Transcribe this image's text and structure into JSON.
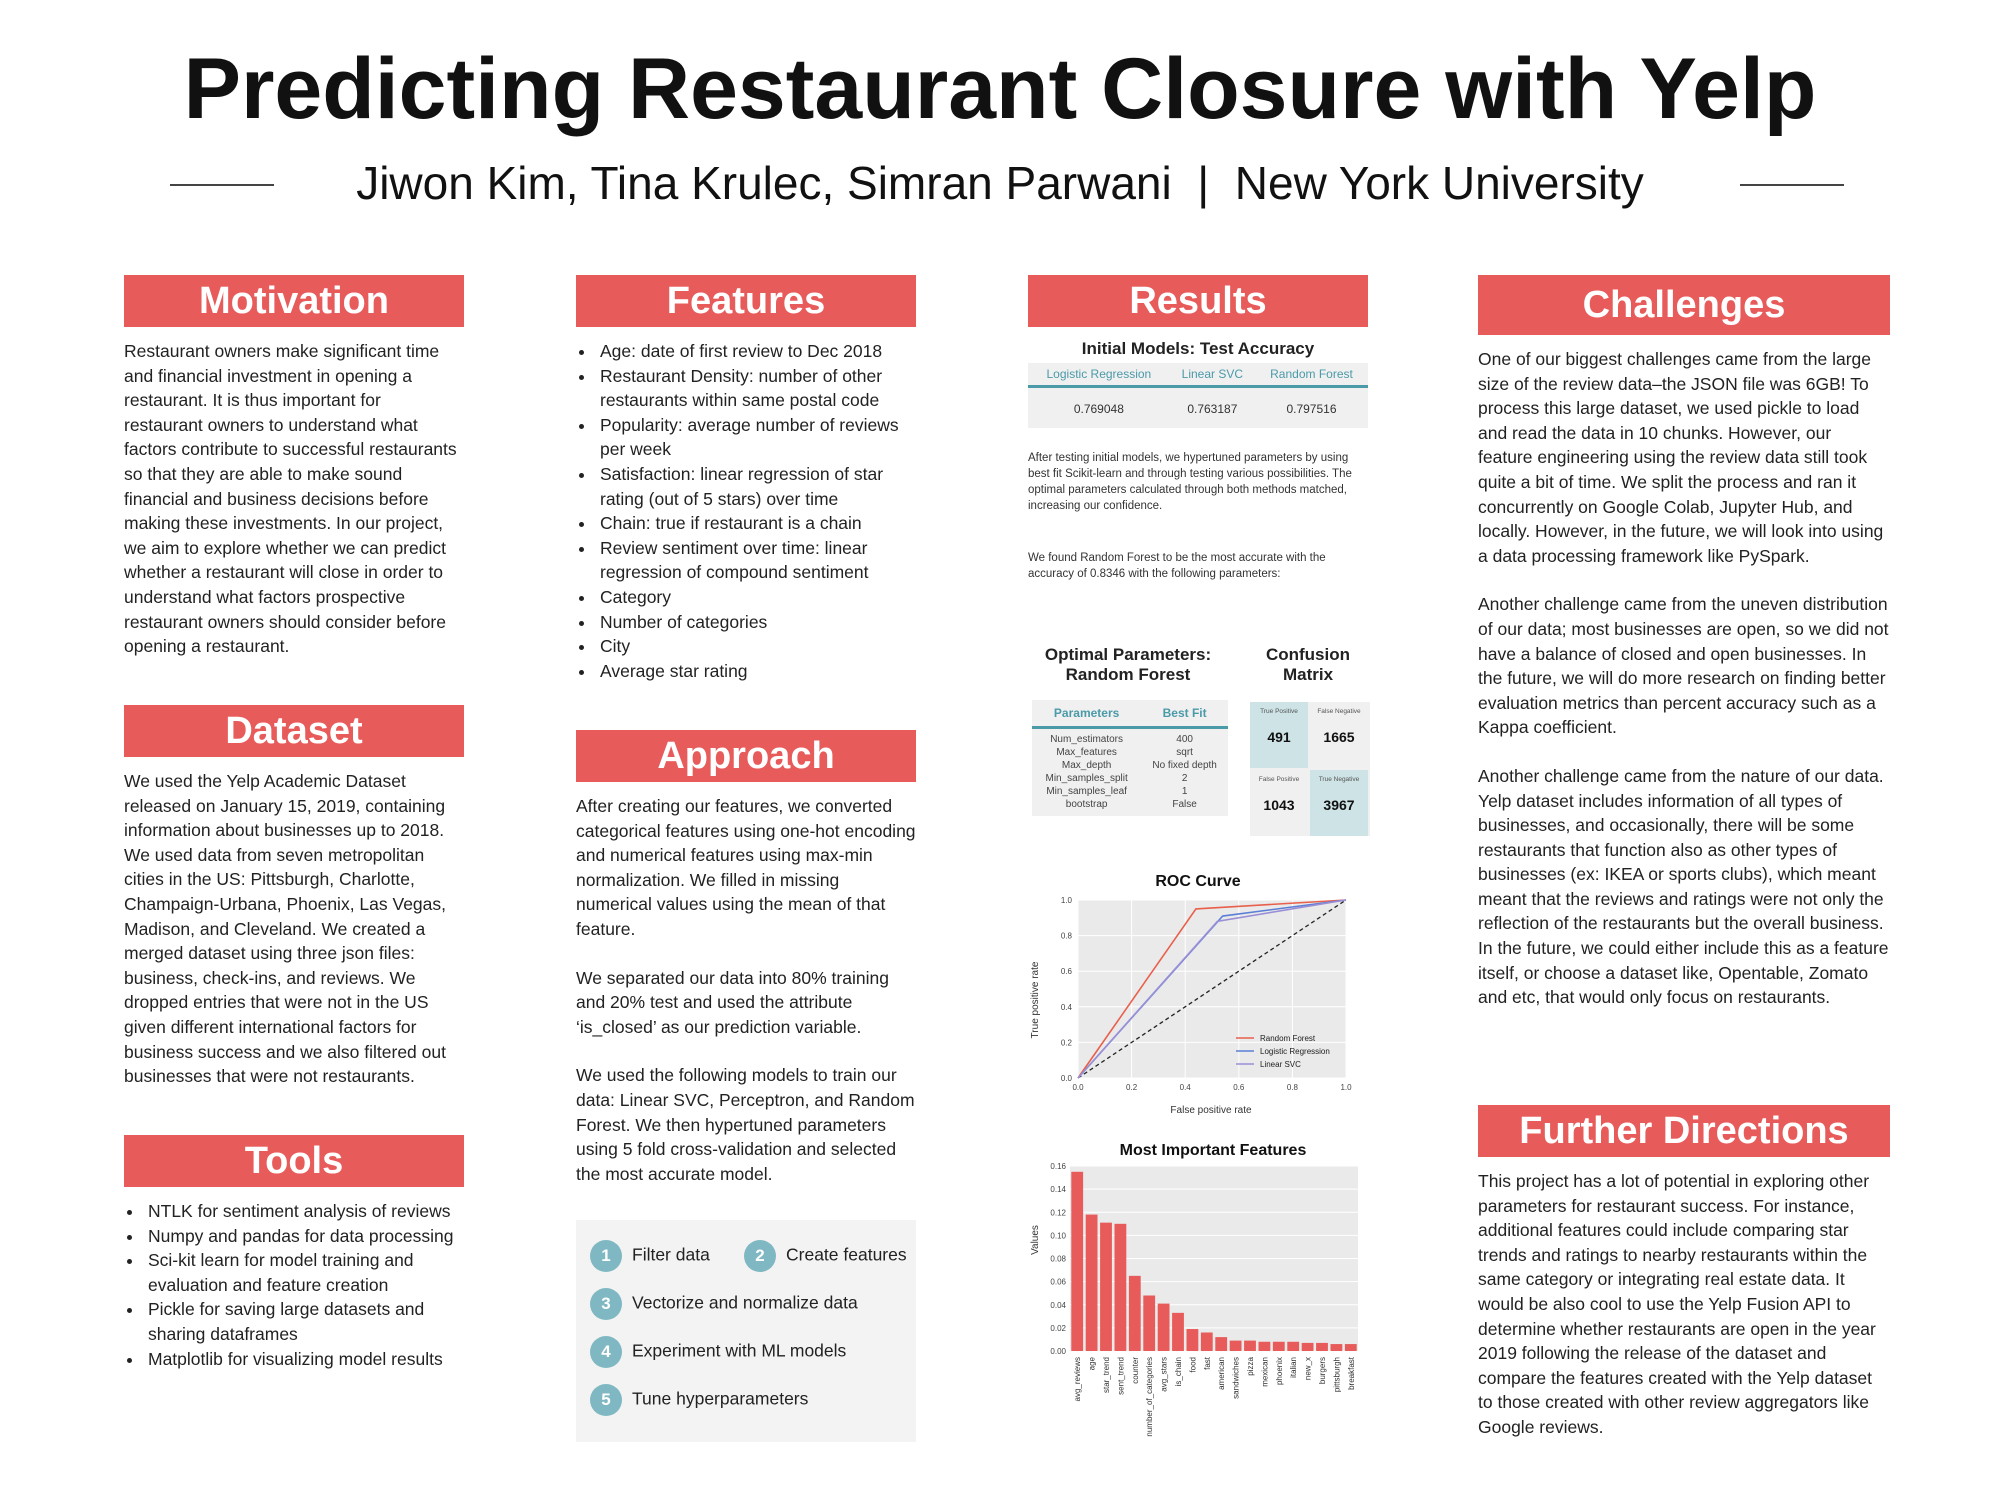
{
  "title": "Predicting Restaurant Closure with Yelp",
  "authors": "Jiwon Kim, Tina Krulec, Simran Parwani  |  New York University",
  "motivation": {
    "heading": "Motivation",
    "text": "Restaurant owners make significant time and financial investment in opening a restaurant. It is thus important for restaurant owners to understand what factors contribute to successful restaurants so that they are able to make sound financial and business decisions before making these investments. In our project, we aim to explore whether we can predict whether a restaurant will close in order to understand what factors prospective restaurant owners should consider before opening a restaurant."
  },
  "dataset": {
    "heading": "Dataset",
    "text": "We used the Yelp Academic Dataset released on January 15, 2019, containing information about businesses up to 2018. We used data from seven metropolitan cities in the US: Pittsburgh, Charlotte, Champaign-Urbana, Phoenix, Las Vegas, Madison, and Cleveland. We created a merged dataset using three json files: business, check-ins, and reviews. We dropped entries that were not in the US given different international factors for business success and we also filtered out businesses that were not restaurants."
  },
  "tools": {
    "heading": "Tools",
    "items": [
      "NTLK for sentiment analysis of reviews",
      "Numpy and pandas for data processing",
      "Sci-kit learn for model training and evaluation and feature creation",
      "Pickle for saving large datasets and sharing dataframes",
      "Matplotlib for visualizing model results"
    ]
  },
  "features": {
    "heading": "Features",
    "items": [
      "Age: date of first review to Dec 2018",
      "Restaurant Density: number of other restaurants within same postal code",
      "Popularity: average number of reviews per week",
      "Satisfaction: linear regression of star rating (out of 5 stars) over time",
      "Chain: true if restaurant is a chain",
      "Review sentiment over time: linear regression of compound sentiment",
      "Category",
      "Number of categories",
      "City",
      "Average star rating"
    ]
  },
  "approach": {
    "heading": "Approach",
    "p1": "After creating our features, we converted categorical features using one-hot encoding and numerical features using max-min normalization. We filled in missing numerical values using the mean of that feature.",
    "p2": "We separated our data into 80% training and 20% test and used the attribute ‘is_closed’ as our prediction variable.",
    "p3": "We used the following models to train our data: Linear SVC, Perceptron, and Random Forest. We then hypertuned parameters using 5 fold cross-validation and selected the most accurate model.",
    "steps": [
      {
        "num": "1",
        "label": "Filter data"
      },
      {
        "num": "2",
        "label": "Create features"
      },
      {
        "num": "3",
        "label": "Vectorize and normalize data"
      },
      {
        "num": "4",
        "label": "Experiment with ML models"
      },
      {
        "num": "5",
        "label": "Tune hyperparameters"
      }
    ]
  },
  "results": {
    "heading": "Results",
    "acc_title": "Initial Models: Test Accuracy",
    "acc_headers": [
      "Logistic Regression",
      "Linear SVC",
      "Random Forest"
    ],
    "acc_values": [
      "0.769048",
      "0.763187",
      "0.797516"
    ],
    "text1": "After testing initial models, we hypertuned parameters by using best fit Scikit-learn and through testing various possibilities. The optimal parameters calculated through both methods matched, increasing our confidence.",
    "text2": "We found Random Forest to be the most accurate with the accuracy of 0.8346 with the following parameters:",
    "optimal_title": "Optimal Parameters: Random Forest",
    "params_headers": [
      "Parameters",
      "Best Fit"
    ],
    "params": [
      [
        "Num_estimators",
        "400"
      ],
      [
        "Max_features",
        "sqrt"
      ],
      [
        "Max_depth",
        "No fixed depth"
      ],
      [
        "Min_samples_split",
        "2"
      ],
      [
        "Min_samples_leaf",
        "1"
      ],
      [
        "bootstrap",
        "False"
      ]
    ],
    "cm_title": "Confusion Matrix",
    "cm_cells": [
      {
        "label": "True Positive",
        "value": "491"
      },
      {
        "label": "False Negative",
        "value": "1665"
      },
      {
        "label": "False Positive",
        "value": "1043"
      },
      {
        "label": "True Negative",
        "value": "3967"
      }
    ]
  },
  "challenges": {
    "heading": "Challenges",
    "p1": "One of our biggest challenges came from the large size of the review data–the JSON file was 6GB! To process this large dataset, we used pickle to load and read the data in 10 chunks. However, our feature engineering using the review data still took quite a bit of time. We split the process and ran it concurrently on Google Colab, Jupyter Hub, and locally. However, in the future, we will look into using a data processing framework like PySpark.",
    "p2": "Another challenge came from the uneven distribution of our data; most businesses are open, so we did not have a balance of closed and open businesses. In the future, we will do more research on finding better evaluation metrics than percent accuracy such as a Kappa coefficient.",
    "p3": "Another challenge came from the nature of our data. Yelp dataset includes information of all types of businesses, and occasionally, there will be some restaurants that function also as other types of businesses (ex: IKEA or sports clubs), which meant meant that the reviews and ratings were not only the reflection of the restaurants but the overall business. In the future, we could either include this as a feature itself, or choose a dataset like, Opentable, Zomato and etc, that would only focus on restaurants."
  },
  "further": {
    "heading": "Further Directions",
    "text": "This project has a lot of potential in exploring other parameters for restaurant success. For instance, additional features could include comparing star trends and ratings to nearby restaurants within the same category or integrating real estate data. It would be also cool to use the Yelp Fusion API to determine whether restaurants are open in the year 2019 following the release of the dataset and compare the features created with the Yelp dataset to those created with other review aggregators like Google reviews."
  },
  "colors": {
    "accent": "#e85b5b",
    "teal": "#4a9aa8",
    "cm_highlight": "#cde3e6"
  },
  "chart_data": [
    {
      "type": "line",
      "title": "ROC Curve",
      "xlabel": "False positive rate",
      "ylabel": "True positive rate",
      "xlim": [
        0,
        1
      ],
      "ylim": [
        0,
        1
      ],
      "xticks": [
        "0.0",
        "0.2",
        "0.4",
        "0.6",
        "0.8",
        "1.0"
      ],
      "yticks": [
        "0.0",
        "0.2",
        "0.4",
        "0.6",
        "0.8",
        "1.0"
      ],
      "grid": true,
      "legend": "bottom-right",
      "series": [
        {
          "name": "Random Forest",
          "color": "#e8604c",
          "x": [
            0,
            0.44,
            1
          ],
          "y": [
            0,
            0.95,
            1
          ]
        },
        {
          "name": "Logistic Regression",
          "color": "#5b7fd6",
          "x": [
            0,
            0.54,
            1
          ],
          "y": [
            0,
            0.91,
            1
          ]
        },
        {
          "name": "Linear SVC",
          "color": "#9a8fd6",
          "x": [
            0,
            0.52,
            1
          ],
          "y": [
            0,
            0.88,
            1
          ]
        }
      ]
    },
    {
      "type": "bar",
      "title": "Most Important Features",
      "xlabel": "",
      "ylabel": "Values",
      "ylim": [
        0,
        0.16
      ],
      "yticks": [
        "0.00",
        "0.02",
        "0.04",
        "0.06",
        "0.08",
        "0.10",
        "0.12",
        "0.14",
        "0.16"
      ],
      "color": "#e85b5b",
      "categories": [
        "avg_reviews",
        "age",
        "star_trend",
        "sent_trend",
        "counter",
        "number_of_categories",
        "avg_stars",
        "is_chain",
        "food",
        "fast",
        "american",
        "sandwiches",
        "pizza",
        "mexican",
        "phoenix",
        "italian",
        "new_x",
        "burgers",
        "pittsburgh",
        "breakfast"
      ],
      "values": [
        0.155,
        0.118,
        0.111,
        0.11,
        0.065,
        0.048,
        0.041,
        0.033,
        0.019,
        0.016,
        0.012,
        0.009,
        0.009,
        0.008,
        0.008,
        0.008,
        0.007,
        0.007,
        0.006,
        0.006
      ]
    }
  ]
}
